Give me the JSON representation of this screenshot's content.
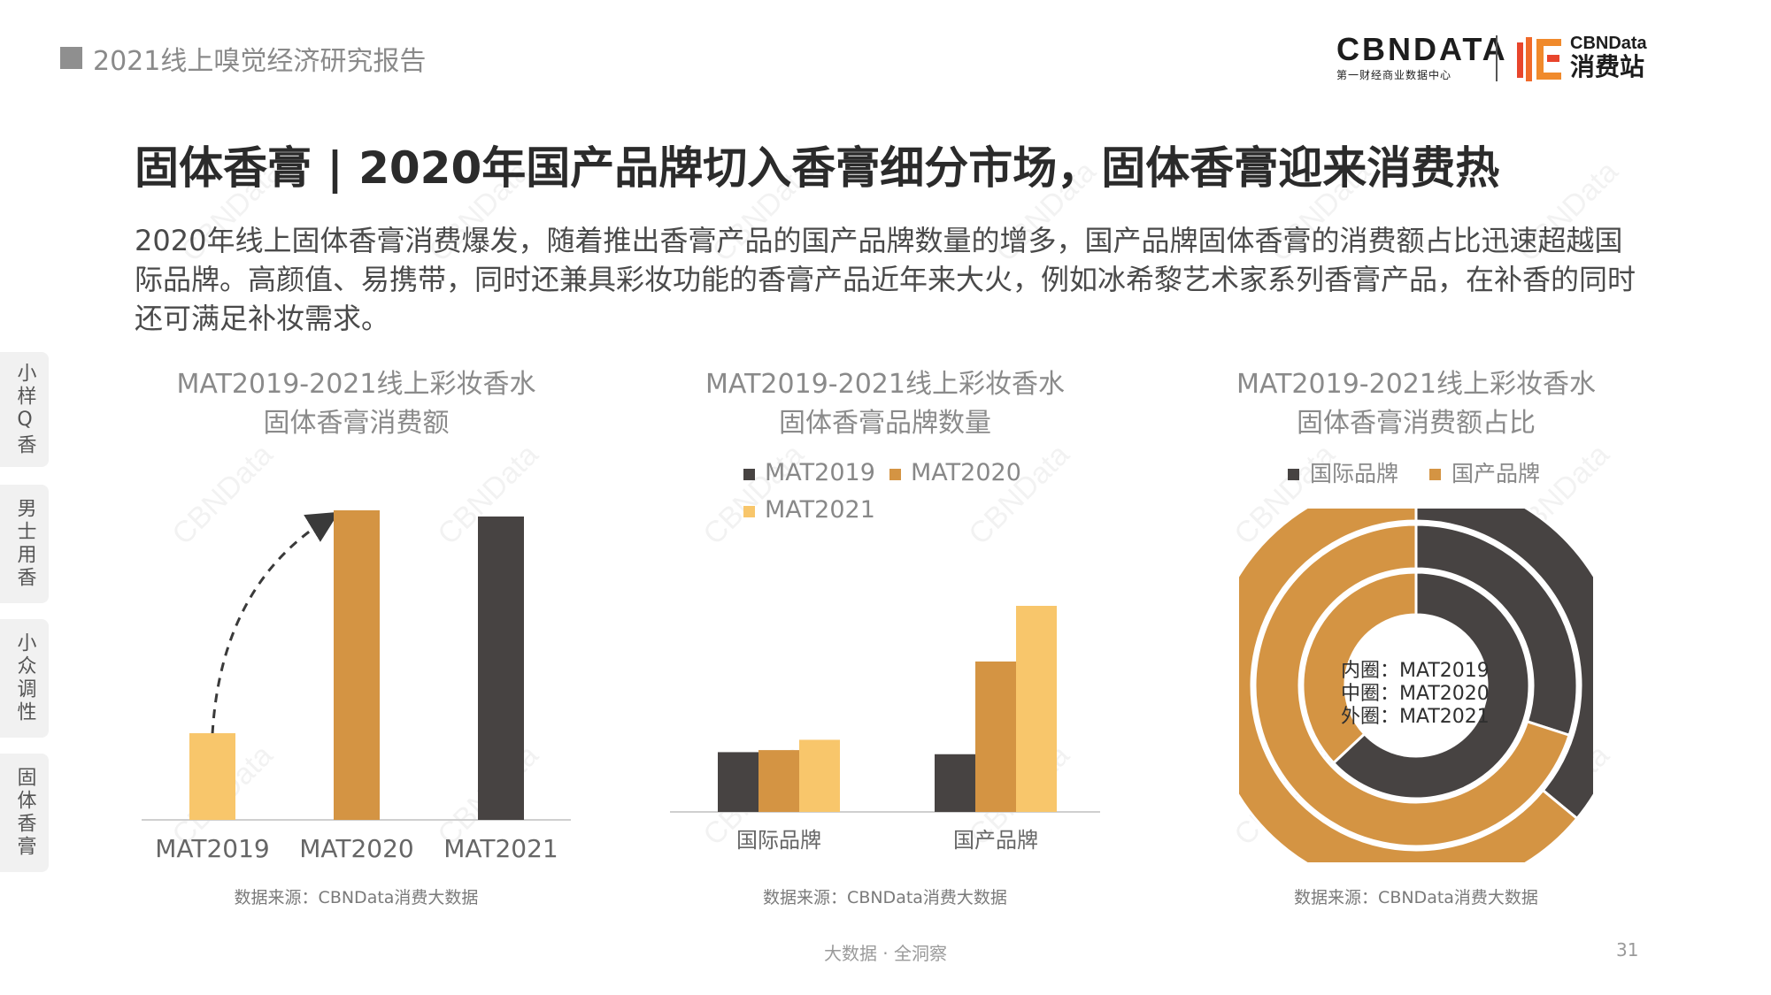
{
  "header": {
    "report_title": "2021线上嗅觉经济研究报告"
  },
  "logo": {
    "brand": "CBNDATA",
    "brand_sub": "第一财经商业数据中心",
    "brand2_line1": "CBNData",
    "brand2_line2": "消费站"
  },
  "heading": "固体香膏 | 2020年国产品牌切入香膏细分市场，固体香膏迎来消费热",
  "summary": "2020年线上固体香膏消费爆发，随着推出香膏产品的国产品牌数量的增多，国产品牌固体香膏的消费额占比迅速超越国际品牌。高颜值、易携带，同时还兼具彩妆功能的香膏产品近年来大火，例如冰希黎艺术家系列香膏产品，在补香的同时还可满足补妆需求。",
  "side_tabs": [
    "小样Q香",
    "男士用香",
    "小众调性",
    "固体香膏"
  ],
  "watermark": "CBNData",
  "colors": {
    "dark": "#474342",
    "orange": "#d49443",
    "yellow": "#f8c66b",
    "axis": "#cfcfcf"
  },
  "chart_data": [
    {
      "type": "bar",
      "title_line1": "MAT2019-2021线上彩妆香水",
      "title_line2": "固体香膏消费额",
      "categories": [
        "MAT2019",
        "MAT2020",
        "MAT2021"
      ],
      "values": [
        28,
        100,
        98
      ],
      "colors": [
        "#f8c66b",
        "#d49443",
        "#474342"
      ],
      "source": "数据来源：CBNData消费大数据"
    },
    {
      "type": "bar",
      "title_line1": "MAT2019-2021线上彩妆香水",
      "title_line2": "固体香膏品牌数量",
      "categories": [
        "国际品牌",
        "国产品牌"
      ],
      "series": [
        {
          "name": "MAT2019",
          "values": [
            29,
            28
          ],
          "color": "#474342"
        },
        {
          "name": "MAT2020",
          "values": [
            30,
            73
          ],
          "color": "#d49443"
        },
        {
          "name": "MAT2021",
          "values": [
            35,
            100
          ],
          "color": "#f8c66b"
        }
      ],
      "source": "数据来源：CBNData消费大数据"
    },
    {
      "type": "pie",
      "title_line1": "MAT2019-2021线上彩妆香水",
      "title_line2": "固体香膏消费额占比",
      "legend": [
        {
          "name": "国际品牌",
          "color": "#474342"
        },
        {
          "name": "国产品牌",
          "color": "#d49443"
        }
      ],
      "rings": [
        {
          "label": "内圈：MAT2019",
          "international": 63,
          "domestic": 37
        },
        {
          "label": "中圈：MAT2020",
          "international": 30,
          "domestic": 70
        },
        {
          "label": "外圈：MAT2021",
          "international": 36,
          "domestic": 64
        }
      ],
      "source": "数据来源：CBNData消费大数据"
    }
  ],
  "footer": {
    "slogan": "大数据 · 全洞察",
    "page_number": "31"
  }
}
